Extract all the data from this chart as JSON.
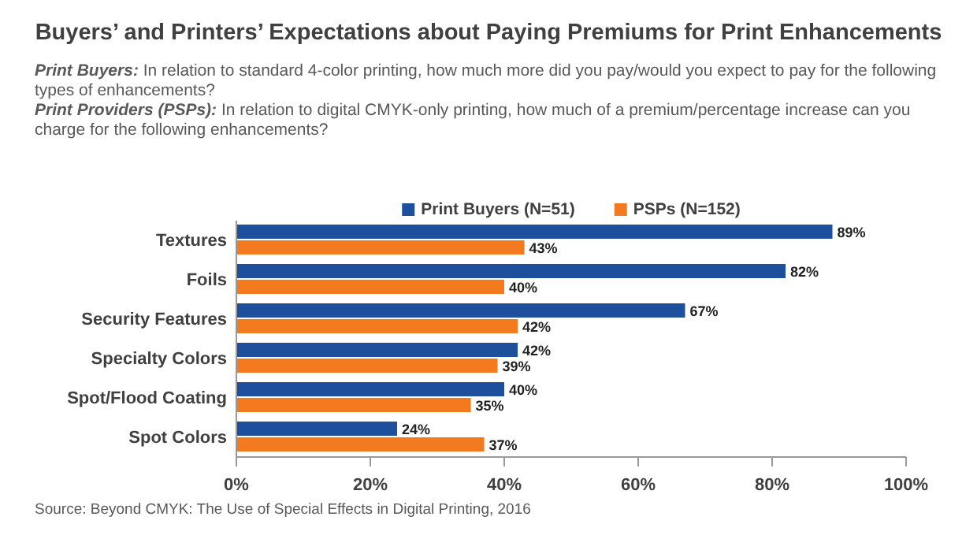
{
  "chart_data": {
    "type": "bar",
    "orientation": "horizontal",
    "title": "Buyers’ and Printers’ Expectations about Paying Premiums for Print Enhancements",
    "subtitle": "Print Buyers: In relation to standard 4-color printing, how much more did you pay/would you expect to pay for the following types of enhancements?\nPrint Providers (PSPs): In relation to digital CMYK-only printing, how much of a premium/percentage increase can you charge for the following enhancements?",
    "categories": [
      "Textures",
      "Foils",
      "Security Features",
      "Specialty Colors",
      "Spot/Flood Coating",
      "Spot Colors"
    ],
    "series": [
      {
        "name": "Print Buyers (N=51)",
        "color": "#1d4f9c",
        "values": [
          89,
          82,
          67,
          42,
          40,
          24
        ],
        "value_labels": [
          "89%",
          "82%",
          "67%",
          "42%",
          "40%",
          "24%"
        ]
      },
      {
        "name": "PSPs (N=152)",
        "color": "#f47a20",
        "values": [
          43,
          40,
          42,
          39,
          35,
          37
        ],
        "value_labels": [
          "43%",
          "40%",
          "42%",
          "39%",
          "35%",
          "37%"
        ]
      }
    ],
    "xlim": [
      0,
      100
    ],
    "xticks": [
      {
        "value": 0,
        "label": "0%"
      },
      {
        "value": 20,
        "label": "20%"
      },
      {
        "value": 40,
        "label": "40%"
      },
      {
        "value": 60,
        "label": "60%"
      },
      {
        "value": 80,
        "label": "80%"
      },
      {
        "value": 100,
        "label": "100%"
      }
    ],
    "grid": false,
    "legend": "top",
    "annotations": [
      "Source: Beyond CMYK: The Use of Special Effects in Digital Printing, 2016"
    ]
  }
}
